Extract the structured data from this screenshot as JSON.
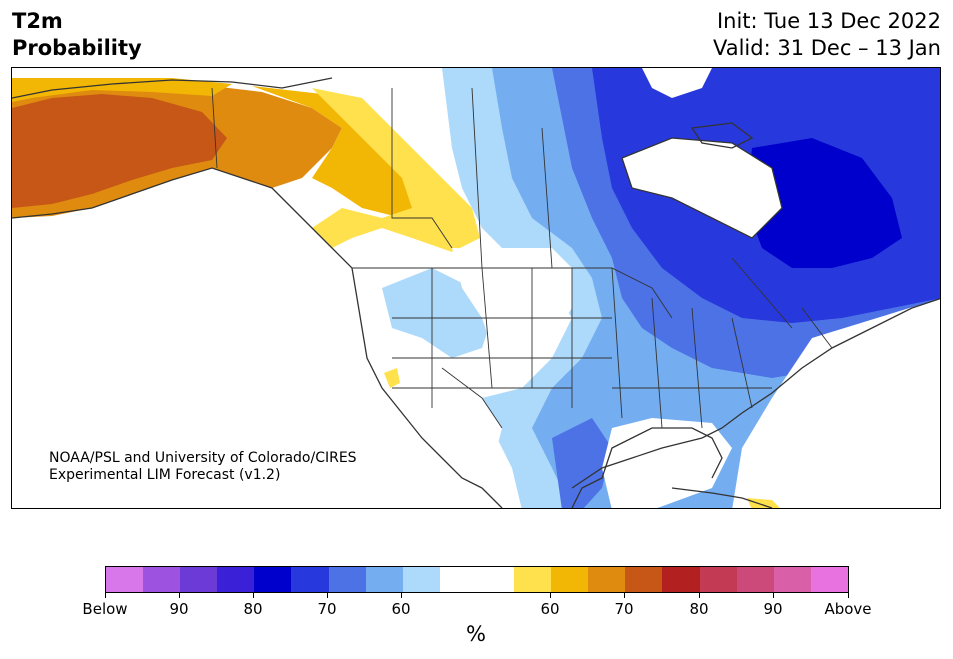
{
  "header": {
    "title_line1": "T2m",
    "title_line2": "Probability",
    "init": "Init: Tue 13 Dec 2022",
    "valid": "Valid: 31 Dec – 13 Jan"
  },
  "credit": {
    "line1": "NOAA/PSL and University of Colorado/CIRES",
    "line2": "Experimental LIM Forecast (v1.2)"
  },
  "colorbar": {
    "unit": "%",
    "colors": [
      "#d777e9",
      "#9e53e0",
      "#6b3ad7",
      "#3a20d6",
      "#0000cc",
      "#2738dd",
      "#4c72e6",
      "#74aef1",
      "#add9fa",
      "#ffffff",
      "#ffffff",
      "#ffe14d",
      "#f2b705",
      "#df8b0f",
      "#c65716",
      "#b32020",
      "#c23a54",
      "#cc4a7a",
      "#d95fa8",
      "#e873e0"
    ],
    "ticks": [
      "Below",
      "90",
      "80",
      "70",
      "60",
      "60",
      "70",
      "80",
      "90",
      "Above"
    ]
  },
  "map": {
    "colors": {
      "land": "#ffffff",
      "ocean": "#ffffff",
      "lightblue": "#add9fa",
      "blue": "#74aef1",
      "medblue": "#4c72e6",
      "darkblue": "#2738dd",
      "navy": "#0000cc",
      "yellow": "#ffe14d",
      "gold": "#f2b705",
      "orange": "#df8b0f",
      "rust": "#c65716",
      "border": "#333333"
    }
  }
}
